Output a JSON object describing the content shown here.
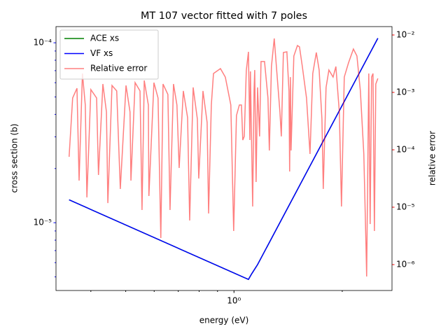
{
  "chart_data": {
    "type": "line",
    "title": "MT 107 vector fitted with 7 poles",
    "xlabel": "energy (eV)",
    "ylabel": "cross section (b)",
    "y2label": "relative error",
    "xscale": "log",
    "yscale": "log",
    "y2scale": "log",
    "xlim": [
      0.32,
      2.75
    ],
    "ylim": [
      4.2e-06,
      0.000123
    ],
    "y2lim": [
      3.54e-07,
      0.014
    ],
    "xticks": [
      {
        "value": 1,
        "label": "10⁰"
      }
    ],
    "xminorticks": [
      0.4,
      0.5,
      0.6,
      0.7,
      0.8,
      0.9,
      2
    ],
    "yticks": [
      {
        "value": 1e-05,
        "label": "10⁻⁵"
      },
      {
        "value": 0.0001,
        "label": "10⁻⁴"
      }
    ],
    "yminorticks": [
      5e-06,
      6e-06,
      7e-06,
      8e-06,
      9e-06,
      2e-05,
      3e-05,
      4e-05,
      5e-05,
      6e-05,
      7e-05,
      8e-05,
      9e-05
    ],
    "y2ticks": [
      {
        "value": 1e-06,
        "label": "10⁻⁶"
      },
      {
        "value": 1e-05,
        "label": "10⁻⁵"
      },
      {
        "value": 0.0001,
        "label": "10⁻⁴"
      },
      {
        "value": 0.001,
        "label": "10⁻³"
      },
      {
        "value": 0.01,
        "label": "10⁻²"
      }
    ],
    "ycolor": "#0000ff",
    "y2color": "#ff0000",
    "legend": "upper left",
    "series": [
      {
        "name": "ACE xs",
        "color": "#008000",
        "x": [
          0.348,
          1.097,
          1.12,
          1.163,
          2.512
        ],
        "values": [
          1.34e-05,
          4.84e-06,
          5.2e-06,
          5.85e-06,
          0.000106
        ]
      },
      {
        "name": "VF xs",
        "color": "#0000ff",
        "x": [
          0.348,
          1.097,
          1.12,
          1.163,
          2.512
        ],
        "values": [
          1.34e-05,
          4.84e-06,
          5.2e-06,
          5.85e-06,
          0.000106
        ]
      },
      {
        "name": "Relative error",
        "color": "#ff0000",
        "alpha": 0.5,
        "axis": "y2",
        "x": [
          0.348,
          0.356,
          0.366,
          0.371,
          0.379,
          0.386,
          0.39,
          0.4,
          0.415,
          0.42,
          0.432,
          0.442,
          0.446,
          0.458,
          0.472,
          0.483,
          0.501,
          0.514,
          0.517,
          0.531,
          0.548,
          0.555,
          0.563,
          0.578,
          0.58,
          0.599,
          0.615,
          0.626,
          0.635,
          0.655,
          0.664,
          0.679,
          0.694,
          0.704,
          0.723,
          0.743,
          0.753,
          0.77,
          0.791,
          0.798,
          0.82,
          0.842,
          0.85,
          0.865,
          0.877,
          0.917,
          0.946,
          0.98,
          0.998,
          1.016,
          1.035,
          1.049,
          1.058,
          1.068,
          1.082,
          1.097,
          1.107,
          1.111,
          1.127,
          1.137,
          1.142,
          1.152,
          1.163,
          1.178,
          1.189,
          1.216,
          1.243,
          1.254,
          1.271,
          1.294,
          1.312,
          1.342,
          1.354,
          1.372,
          1.403,
          1.422,
          1.428,
          1.435,
          1.441,
          1.467,
          1.501,
          1.521,
          1.549,
          1.591,
          1.627,
          1.656,
          1.694,
          1.725,
          1.756,
          1.771,
          1.803,
          1.836,
          1.886,
          1.92,
          1.963,
          1.99,
          2.026,
          2.081,
          2.148,
          2.197,
          2.246,
          2.296,
          2.328,
          2.338,
          2.37,
          2.391,
          2.413,
          2.435,
          2.457,
          2.479,
          2.512
        ],
        "values": [
          7.55e-05,
          0.000799,
          0.00118,
          2.91e-05,
          0.00213,
          0.000604,
          1.48e-05,
          0.00112,
          0.000799,
          3.64e-05,
          0.0014,
          0.000456,
          1.18e-05,
          0.00132,
          0.00106,
          2.08e-05,
          0.00132,
          0.000456,
          2.91e-05,
          0.00148,
          0.00106,
          8.94e-06,
          0.00161,
          0.000604,
          1.57e-05,
          0.00148,
          0.000799,
          2.91e-06,
          0.0014,
          0.00092,
          8.94e-06,
          0.0014,
          0.000604,
          4.82e-05,
          0.00106,
          0.000364,
          5.86e-06,
          0.00122,
          0.000344,
          3.16e-05,
          0.00106,
          0.000299,
          7.76e-06,
          0.000604,
          0.00213,
          0.0026,
          0.00185,
          0.000604,
          3.85e-06,
          0.000396,
          0.000604,
          0.000604,
          0.000148,
          0.000171,
          0.00239,
          0.00509,
          0.000148,
          0.00232,
          1.03e-05,
          0.00106,
          0.00245,
          2.75e-05,
          0.00122,
          0.000171,
          0.00345,
          0.00345,
          0.000799,
          9.73e-05,
          0.00282,
          0.00869,
          0.00282,
          0.000456,
          0.000171,
          0.00495,
          0.00509,
          0.00106,
          4.19e-05,
          0.00185,
          9.73e-05,
          0.00431,
          0.00656,
          0.00621,
          0.00282,
          0.000799,
          8.45e-05,
          0.00213,
          0.00495,
          0.00245,
          0.000344,
          2.08e-05,
          0.00122,
          0.00245,
          0.00185,
          0.00282,
          0.000456,
          1.03e-05,
          0.00185,
          0.00325,
          0.0057,
          0.00431,
          0.00106,
          8.45e-05,
          2.2e-06,
          6.21e-07,
          0.00213,
          5.09e-06,
          0.00185,
          0.00213,
          3.85e-06,
          0.0014,
          0.00175
        ]
      }
    ]
  }
}
